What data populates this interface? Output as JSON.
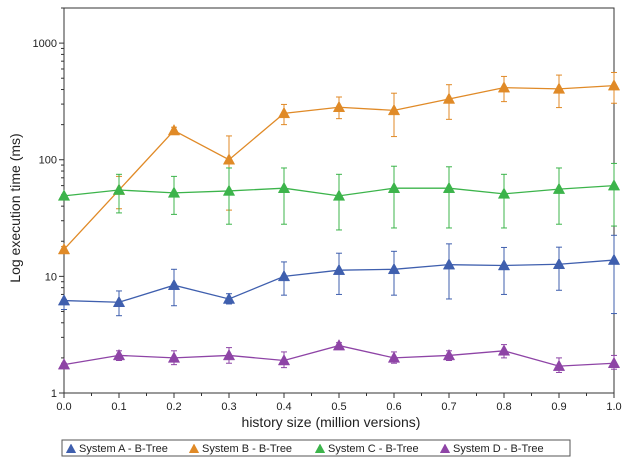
{
  "chart_data": {
    "type": "line",
    "title": "",
    "xlabel": "history size (million versions)",
    "ylabel": "Log execution time (ms)",
    "yscale": "log",
    "xlim": [
      0.0,
      1.0
    ],
    "ylim": [
      1,
      2000
    ],
    "x": [
      0.0,
      0.1,
      0.2,
      0.3,
      0.4,
      0.5,
      0.6,
      0.7,
      0.8,
      0.9,
      1.0
    ],
    "x_tick_labels": [
      "0.0",
      "0.1",
      "0.2",
      "0.3",
      "0.4",
      "0.5",
      "0.6",
      "0.7",
      "0.8",
      "0.9",
      "1.0"
    ],
    "y_ticks": [
      1,
      10,
      100,
      1000
    ],
    "y_tick_labels": [
      "1",
      "10",
      "100",
      "1000"
    ],
    "grid": false,
    "legend_position": "bottom",
    "series": [
      {
        "name": "System A - B-Tree",
        "color": "#3f5fae",
        "values": [
          6.2,
          6.0,
          8.4,
          6.4,
          10.0,
          11.3,
          11.5,
          12.6,
          12.4,
          12.7,
          13.8
        ],
        "err_low": [
          5.2,
          4.6,
          5.6,
          5.8,
          6.9,
          7.0,
          6.9,
          6.4,
          7.0,
          7.6,
          4.8
        ],
        "err_high": [
          6.3,
          7.5,
          11.5,
          7.1,
          13.3,
          15.8,
          16.4,
          19.0,
          17.7,
          17.8,
          22.5
        ]
      },
      {
        "name": "System B  - B-Tree",
        "color": "#e08a27",
        "values": [
          17,
          55,
          178,
          100,
          250,
          282,
          265,
          332,
          415,
          405,
          432
        ],
        "err_low": [
          16,
          38,
          170,
          37,
          200,
          225,
          158,
          222,
          315,
          280,
          305
        ],
        "err_high": [
          18,
          72,
          190,
          160,
          298,
          345,
          372,
          440,
          518,
          532,
          560
        ]
      },
      {
        "name": "System C - B-Tree",
        "color": "#3cb44b",
        "values": [
          49,
          55,
          52,
          54,
          57,
          49,
          57,
          57,
          51,
          56,
          60
        ],
        "err_low": [
          48,
          35,
          34,
          28,
          28,
          25,
          26,
          26,
          26,
          28,
          27
        ],
        "err_high": [
          50,
          75,
          72,
          85,
          85,
          75,
          88,
          87,
          75,
          85,
          93
        ]
      },
      {
        "name": "System D - B-Tree",
        "color": "#8e44a6",
        "values": [
          1.75,
          2.1,
          2.0,
          2.1,
          1.9,
          2.55,
          2.0,
          2.1,
          2.3,
          1.7,
          1.8
        ],
        "err_low": [
          1.7,
          1.9,
          1.75,
          1.8,
          1.65,
          2.4,
          1.8,
          1.9,
          2.0,
          1.5,
          1.6
        ],
        "err_high": [
          1.8,
          2.3,
          2.3,
          2.45,
          2.25,
          2.7,
          2.25,
          2.3,
          2.6,
          2.0,
          2.1
        ]
      }
    ]
  }
}
